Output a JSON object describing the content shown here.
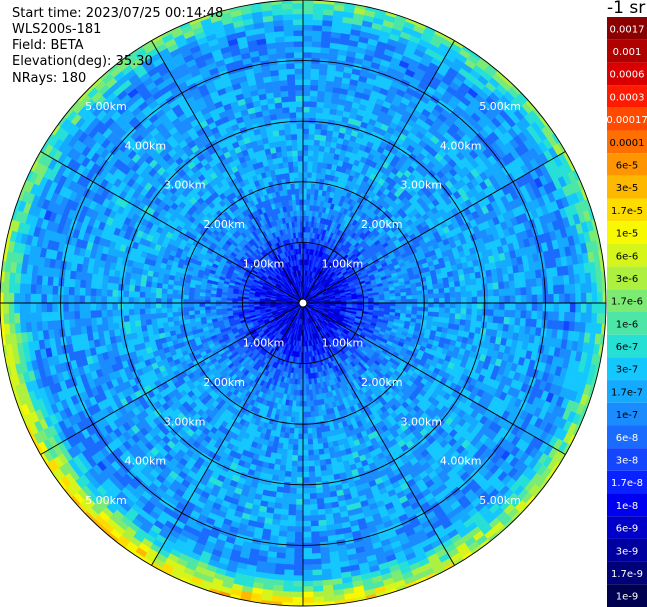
{
  "header": {
    "start_time": "Start time: 2023/07/25 00:14:48",
    "device": "WLS200s-181",
    "field": "Field: BETA",
    "elevation": "Elevation(deg): 35.30",
    "nrays": "NRays: 180"
  },
  "colorbar": {
    "unit_label": "-1 sr",
    "levels": [
      {
        "label": "0.0017",
        "color": "#8b0000"
      },
      {
        "label": "0.001",
        "color": "#b00000"
      },
      {
        "label": "0.0006",
        "color": "#d80000"
      },
      {
        "label": "0.0003",
        "color": "#ff1a00"
      },
      {
        "label": "0.00017",
        "color": "#ff4a00"
      },
      {
        "label": "0.0001",
        "color": "#ff7000"
      },
      {
        "label": "6e-5",
        "color": "#ff9500"
      },
      {
        "label": "3e-5",
        "color": "#ffb800"
      },
      {
        "label": "1.7e-5",
        "color": "#ffdc00"
      },
      {
        "label": "1e-5",
        "color": "#f8f800"
      },
      {
        "label": "6e-6",
        "color": "#d6f51a"
      },
      {
        "label": "3e-6",
        "color": "#aef040"
      },
      {
        "label": "1.7e-6",
        "color": "#7deb73"
      },
      {
        "label": "1e-6",
        "color": "#4de6a6"
      },
      {
        "label": "6e-7",
        "color": "#26e0d6"
      },
      {
        "label": "3e-7",
        "color": "#14c8ff"
      },
      {
        "label": "1.7e-7",
        "color": "#14aaff"
      },
      {
        "label": "1e-7",
        "color": "#1a8cff"
      },
      {
        "label": "6e-8",
        "color": "#1a6cff"
      },
      {
        "label": "3e-8",
        "color": "#1446ff"
      },
      {
        "label": "1.7e-8",
        "color": "#0a22ff"
      },
      {
        "label": "1e-8",
        "color": "#0000f0"
      },
      {
        "label": "6e-9",
        "color": "#0000c8"
      },
      {
        "label": "3e-9",
        "color": "#0000a0"
      },
      {
        "label": "1.7e-9",
        "color": "#000078"
      },
      {
        "label": "1e-9",
        "color": "#000050"
      }
    ]
  },
  "chart_data": {
    "type": "heatmap",
    "projection": "polar",
    "title": "",
    "field": "BETA",
    "nrays": 180,
    "max_range_km": 5.0,
    "range_ring_labels": [
      "1.00km",
      "2.00km",
      "3.00km",
      "4.00km",
      "5.00km"
    ],
    "range_ring_values_km": [
      1.0,
      2.0,
      3.0,
      4.0,
      5.0
    ],
    "azimuth_spokes_deg": [
      0,
      30,
      60,
      90,
      120,
      150,
      180,
      210,
      240,
      270,
      300,
      330
    ],
    "typical_values_by_range": [
      {
        "range_km": 0.5,
        "value": 1e-08
      },
      {
        "range_km": 1.5,
        "value": 1e-07
      },
      {
        "range_km": 2.5,
        "value": 1.7e-07
      },
      {
        "range_km": 3.5,
        "value": 1.7e-07
      },
      {
        "range_km": 4.5,
        "value": 1e-07
      },
      {
        "range_km": 5.0,
        "value": 1.7e-06
      }
    ],
    "legend_position": "right",
    "colorscale": "log",
    "grid": true
  }
}
